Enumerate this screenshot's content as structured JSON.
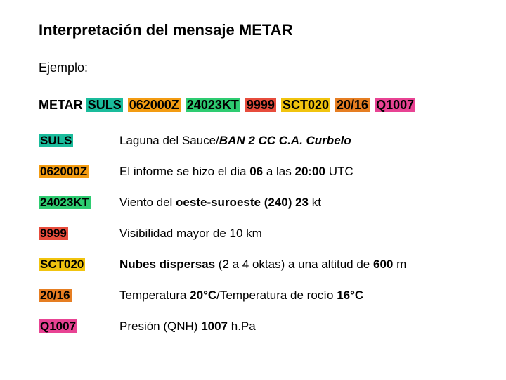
{
  "title": "Interpretación del mensaje METAR",
  "example_label": "Ejemplo:",
  "metar_prefix": "METAR",
  "colors": {
    "suls": "#1abc9c",
    "time": "#f39c12",
    "wind": "#2ecc71",
    "vis": "#e74c3c",
    "cloud": "#f1c40f",
    "temp": "#e67e22",
    "pressure": "#e84393"
  },
  "codes": {
    "suls": "SULS",
    "time": "062000Z",
    "wind": "24023KT",
    "vis": "9999",
    "cloud": "SCT020",
    "temp": "20/16",
    "pressure": "Q1007"
  },
  "desc": {
    "suls_plain": "Laguna del Sauce/",
    "suls_bold": "BAN 2 CC C.A. Curbelo",
    "time_a": "El informe se hizo el dia ",
    "time_b": "06",
    "time_c": " a las ",
    "time_d": "20:00",
    "time_e": " UTC",
    "wind_a": "Viento del ",
    "wind_b": "oeste-suroeste (240) 23",
    "wind_c": " kt",
    "vis": "Visibilidad mayor de 10 km",
    "cloud_a": "Nubes dispersas",
    "cloud_b": " (2 a 4 oktas) a una altitud de ",
    "cloud_c": "600",
    "cloud_d": " m",
    "temp_a": "Temperatura ",
    "temp_b": "20°C",
    "temp_c": "/Temperatura de rocío ",
    "temp_d": "16°C",
    "press_a": "Presión (QNH) ",
    "press_b": "1007",
    "press_c": " h.Pa"
  }
}
